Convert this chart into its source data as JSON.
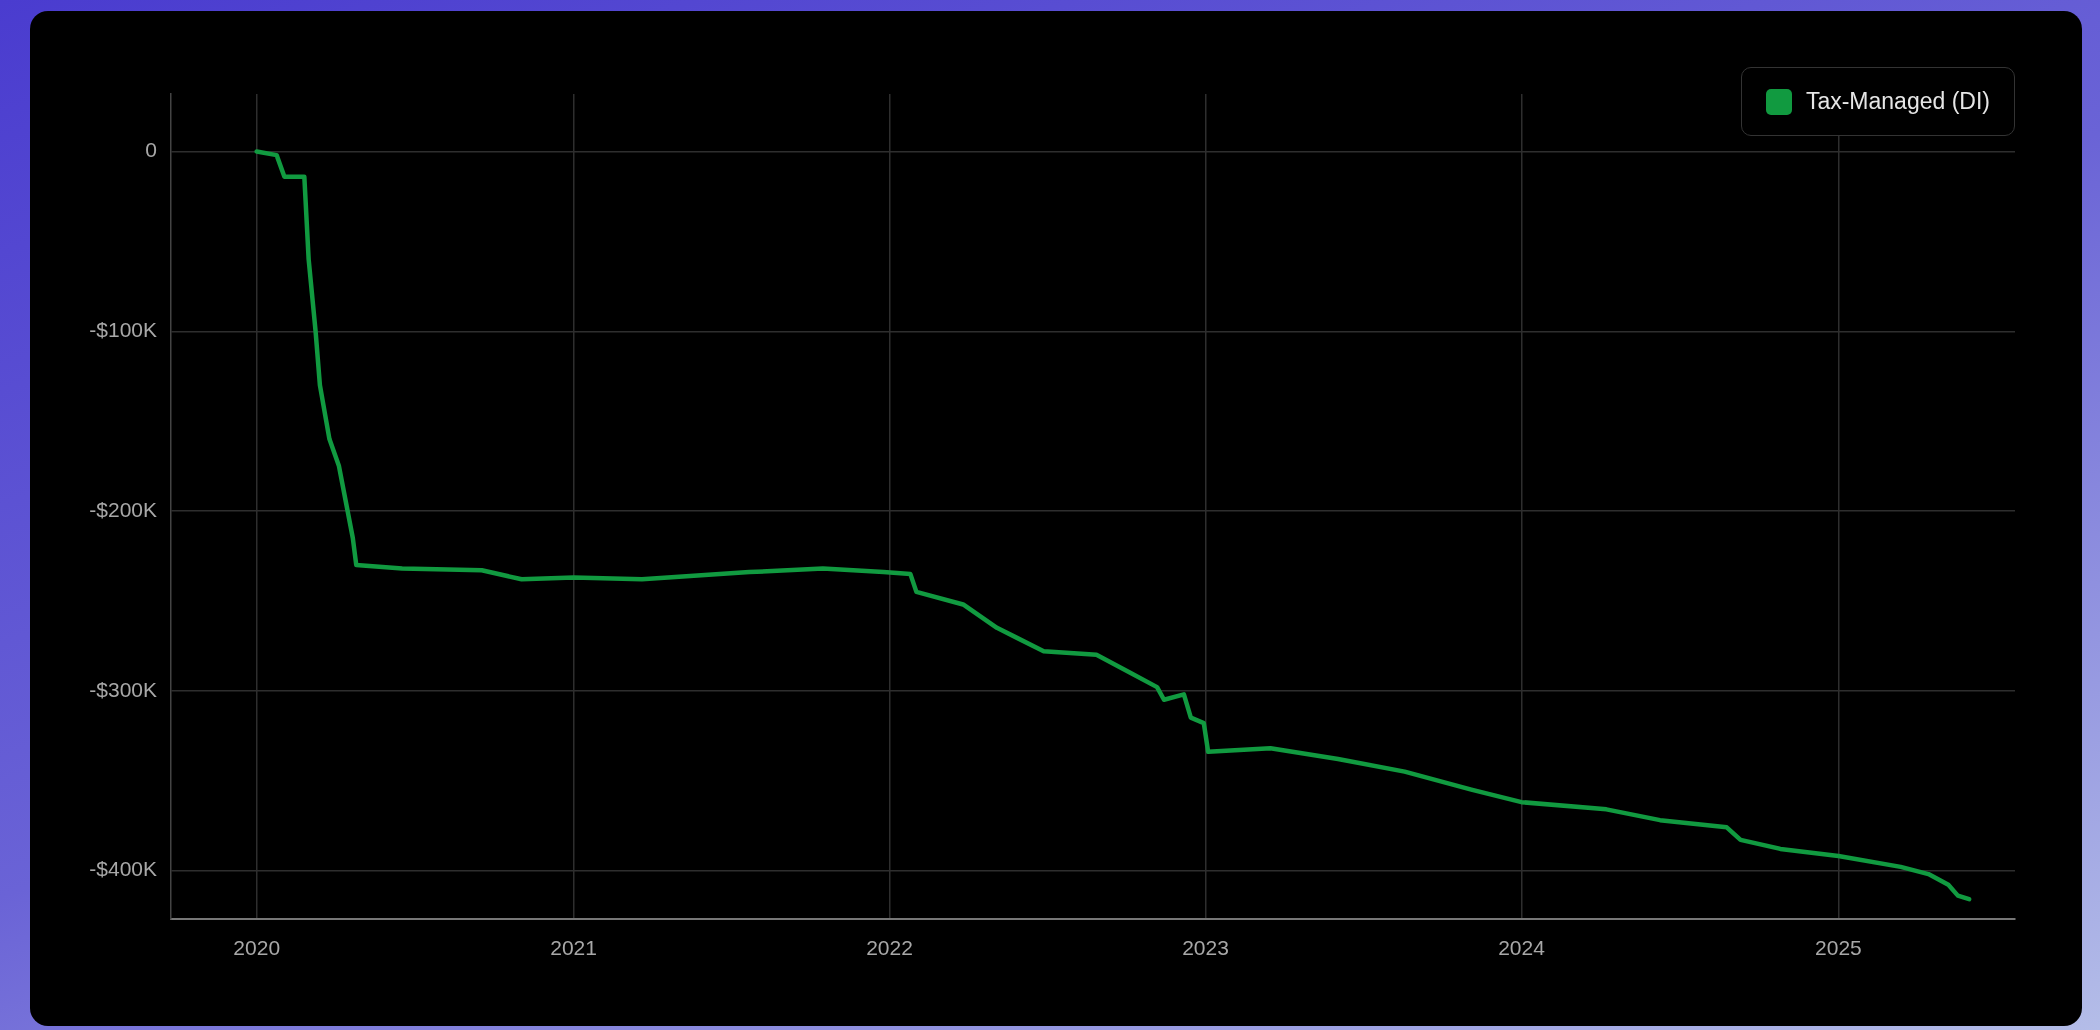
{
  "chart_data": {
    "type": "line",
    "x": [
      "2020-01-01",
      "2020-01-24",
      "2020-02-02",
      "2020-02-25",
      "2020-03-01",
      "2020-03-09",
      "2020-03-14",
      "2020-03-25",
      "2020-04-05",
      "2020-04-13",
      "2020-04-21",
      "2020-04-25",
      "2020-06-17",
      "2020-09-17",
      "2020-11-02",
      "2021-01-01",
      "2021-03-21",
      "2021-07-23",
      "2021-10-16",
      "2021-12-25",
      "2022-01-25",
      "2022-02-01",
      "2022-03-27",
      "2022-05-05",
      "2022-06-28",
      "2022-08-28",
      "2022-10-06",
      "2022-11-06",
      "2022-11-14",
      "2022-12-07",
      "2022-12-15",
      "2022-12-30",
      "2023-01-04",
      "2023-03-17",
      "2023-06-03",
      "2023-08-19",
      "2023-11-04",
      "2024-01-01",
      "2024-04-08",
      "2024-06-09",
      "2024-08-25",
      "2024-09-10",
      "2024-10-26",
      "2025-01-01",
      "2025-03-14",
      "2025-04-15",
      "2025-05-08",
      "2025-05-19",
      "2025-06-01"
    ],
    "series": [
      {
        "name": "Tax-Managed (DI)",
        "color": "#119a40",
        "values": [
          0,
          -2000,
          -14000,
          -14000,
          -60000,
          -100000,
          -130000,
          -160000,
          -175000,
          -195000,
          -215000,
          -230000,
          -232000,
          -233000,
          -238000,
          -237000,
          -238000,
          -234000,
          -232000,
          -234000,
          -235000,
          -245000,
          -252000,
          -265000,
          -278000,
          -280000,
          -290000,
          -298000,
          -305000,
          -302000,
          -315000,
          -318000,
          -334000,
          -332000,
          -338000,
          -345000,
          -355000,
          -362000,
          -366000,
          -372000,
          -376000,
          -383000,
          -388000,
          -392000,
          -398000,
          -402000,
          -408000,
          -414000,
          -416000
        ]
      }
    ],
    "xlim": [
      "2019-09-24",
      "2025-07-24"
    ],
    "xticks": [
      {
        "value": "2020-01-01",
        "label": "2020"
      },
      {
        "value": "2021-01-01",
        "label": "2021"
      },
      {
        "value": "2022-01-01",
        "label": "2022"
      },
      {
        "value": "2023-01-01",
        "label": "2023"
      },
      {
        "value": "2024-01-01",
        "label": "2024"
      },
      {
        "value": "2025-01-01",
        "label": "2025"
      }
    ],
    "ylim": [
      -427000,
      32000
    ],
    "yticks": [
      {
        "value": 0,
        "label": "0"
      },
      {
        "value": -100000,
        "label": "-$100K"
      },
      {
        "value": -200000,
        "label": "-$200K"
      },
      {
        "value": -300000,
        "label": "-$300K"
      },
      {
        "value": -400000,
        "label": "-$400K"
      }
    ],
    "grid": true,
    "legend": "top right",
    "marker": "none",
    "line_style": "solid"
  }
}
